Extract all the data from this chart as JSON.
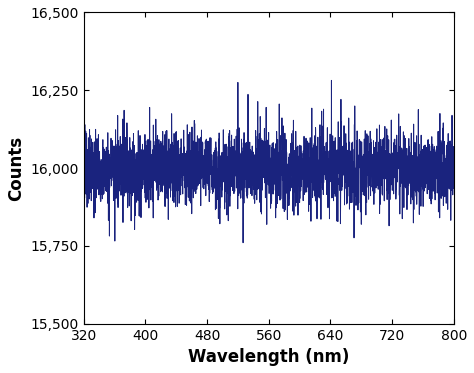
{
  "x_min": 320,
  "x_max": 800,
  "y_min": 15500,
  "y_max": 16500,
  "x_ticks": [
    320,
    400,
    480,
    560,
    640,
    720,
    800
  ],
  "y_ticks": [
    15500,
    15750,
    16000,
    16250,
    16500
  ],
  "x_label": "Wavelength (nm)",
  "y_label": "Counts",
  "line_color": "#1a237e",
  "mean_level": 16000,
  "noise_std": 55,
  "n_points": 3000,
  "seed": 7,
  "background_color": "#ffffff",
  "tick_label_fontsize": 10,
  "axis_label_fontsize": 12,
  "linewidth": 0.7
}
